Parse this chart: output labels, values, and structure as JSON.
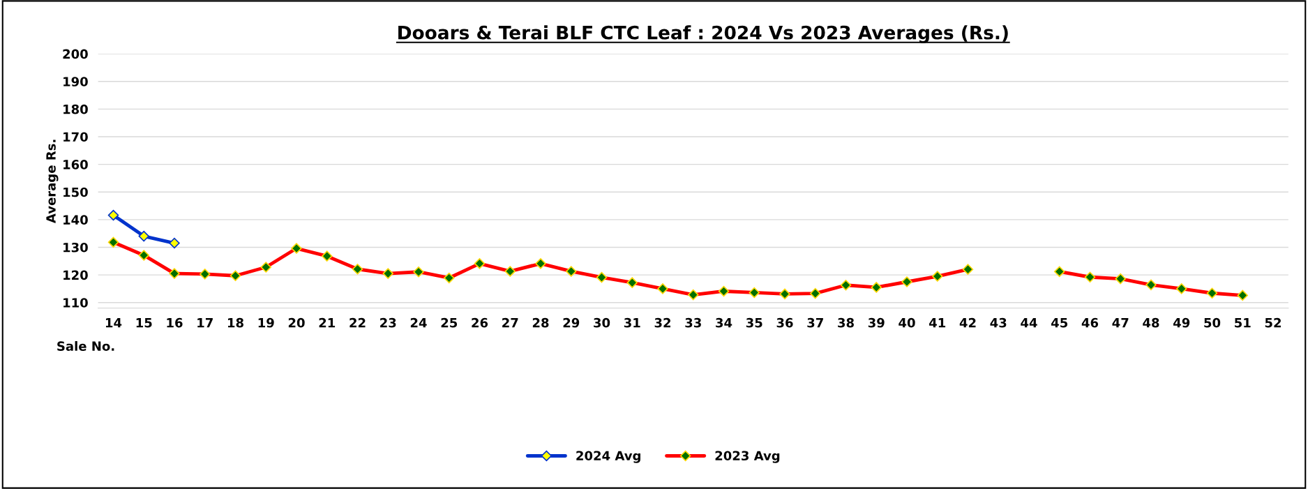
{
  "chart_data": {
    "type": "line",
    "title": "Dooars & Terai BLF CTC Leaf : 2024 Vs 2023 Averages (Rs.)",
    "xlabel": "Sale No.",
    "ylabel": "Average Rs.",
    "categories": [
      "14",
      "15",
      "16",
      "17",
      "18",
      "19",
      "20",
      "21",
      "22",
      "23",
      "24",
      "25",
      "26",
      "27",
      "28",
      "29",
      "30",
      "31",
      "32",
      "33",
      "34",
      "35",
      "36",
      "37",
      "38",
      "39",
      "40",
      "41",
      "42",
      "43",
      "44",
      "45",
      "46",
      "47",
      "48",
      "49",
      "50",
      "51",
      "52"
    ],
    "series": [
      {
        "name": "2024 Avg",
        "color": "#0033cc",
        "values": [
          141.6,
          134.0,
          131.5,
          null,
          null,
          null,
          null,
          null,
          null,
          null,
          null,
          null,
          null,
          null,
          null,
          null,
          null,
          null,
          null,
          null,
          null,
          null,
          null,
          null,
          null,
          null,
          null,
          null,
          null,
          null,
          null,
          null,
          null,
          null,
          null,
          null,
          null,
          null,
          null
        ]
      },
      {
        "name": "2023 Avg",
        "color": "#ff0000",
        "values": [
          131.8,
          127.1,
          120.5,
          120.3,
          119.7,
          122.8,
          129.6,
          126.8,
          122.1,
          120.5,
          121.1,
          118.9,
          124.1,
          121.3,
          124.1,
          121.3,
          119.1,
          117.2,
          115.0,
          112.8,
          114.1,
          113.6,
          113.1,
          113.3,
          116.3,
          115.5,
          117.5,
          119.5,
          122.0,
          null,
          null,
          121.2,
          119.2,
          118.6,
          116.4,
          115.0,
          113.4,
          112.6,
          null
        ]
      }
    ],
    "ylim": [
      108,
      200
    ],
    "yticks": [
      110,
      120,
      130,
      140,
      150,
      160,
      170,
      180,
      190,
      200
    ],
    "grid": "y",
    "legend": "bottom",
    "marker": "diamond",
    "line_style": "solid"
  }
}
